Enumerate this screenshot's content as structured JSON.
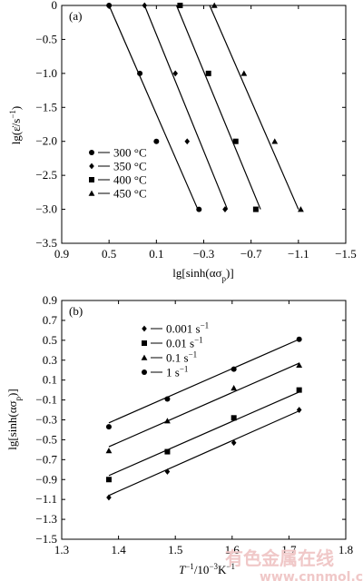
{
  "chart_data": [
    {
      "type": "scatter",
      "panel_label": "(a)",
      "title": "",
      "xlabel": "lg[sinh(ασ",
      "xlabel_sub": "p",
      "xlabel_close": ")]",
      "ylabel": "lg(ε̇/s",
      "ylabel_sup": "−1",
      "ylabel_close": ")",
      "xlim": [
        0.9,
        -1.5
      ],
      "ylim": [
        -3.5,
        0
      ],
      "x_ticks": [
        0.9,
        0.5,
        0.1,
        -0.3,
        -0.7,
        -1.1,
        -1.5
      ],
      "x_tick_labels": [
        "0.9",
        "0.5",
        "0.1",
        "−0.3",
        "−0.7",
        "−1.1",
        "−1.5"
      ],
      "y_ticks": [
        0,
        -0.5,
        -1.0,
        -1.5,
        -2.0,
        -2.5,
        -3.0,
        -3.5
      ],
      "y_tick_labels": [
        "0",
        "−0.5",
        "−1.0",
        "−1.5",
        "−2.0",
        "−2.5",
        "−3.0",
        "−3.5"
      ],
      "legend_position": "bottom-left",
      "series": [
        {
          "name": "300 °C",
          "marker": "circle",
          "x": [
            0.5,
            0.24,
            0.1,
            -0.26
          ],
          "y": [
            0,
            -1.0,
            -2.0,
            -3.0
          ],
          "fit": [
            [
              0.5,
              0
            ],
            [
              -0.25,
              -3.0
            ]
          ]
        },
        {
          "name": "350 °C",
          "marker": "diamond",
          "x": [
            0.2,
            -0.06,
            -0.16,
            -0.48
          ],
          "y": [
            0,
            -1.0,
            -2.0,
            -3.0
          ],
          "fit": [
            [
              0.2,
              0
            ],
            [
              -0.5,
              -3.0
            ]
          ]
        },
        {
          "name": "400 °C",
          "marker": "square",
          "x": [
            -0.1,
            -0.34,
            -0.57,
            -0.74
          ],
          "y": [
            0,
            -1.0,
            -2.0,
            -3.0
          ],
          "fit": [
            [
              -0.07,
              0
            ],
            [
              -0.78,
              -3.0
            ]
          ]
        },
        {
          "name": "450 °C",
          "marker": "triangle",
          "x": [
            -0.39,
            -0.64,
            -0.9,
            -1.12
          ],
          "y": [
            0,
            -1.0,
            -2.0,
            -3.0
          ],
          "fit": [
            [
              -0.35,
              0
            ],
            [
              -1.1,
              -3.0
            ]
          ]
        }
      ]
    },
    {
      "type": "scatter",
      "panel_label": "(b)",
      "title": "",
      "xlabel": "T",
      "xlabel_sup": "−1",
      "xlabel_rest": "/10",
      "xlabel_sup2": "−3",
      "xlabel_unit": "K",
      "xlabel_sup3": "−1",
      "ylabel": "lg[sinh(ασ",
      "ylabel_sub": "p",
      "ylabel_close": ")]",
      "xlim": [
        1.3,
        1.8
      ],
      "ylim": [
        -1.5,
        0.9
      ],
      "x_ticks": [
        1.3,
        1.4,
        1.5,
        1.6,
        1.7,
        1.8
      ],
      "x_tick_labels": [
        "1.3",
        "1.4",
        "1.5",
        "1.6",
        "1.7",
        "1.8"
      ],
      "y_ticks": [
        0.9,
        0.7,
        0.5,
        0.3,
        0.1,
        -0.1,
        -0.3,
        -0.5,
        -0.7,
        -0.9,
        -1.1,
        -1.3,
        -1.5
      ],
      "y_tick_labels": [
        "0.9",
        "0.7",
        "0.5",
        "0.3",
        "0.1",
        "−0.1",
        "−0.3",
        "−0.5",
        "−0.7",
        "−0.9",
        "−1.1",
        "−1.3",
        "−1.5"
      ],
      "legend_position": "top-left",
      "series": [
        {
          "name": "0.001 s",
          "name_sup": "−1",
          "marker": "diamond",
          "x": [
            1.383,
            1.486,
            1.603,
            1.718
          ],
          "y": [
            -1.08,
            -0.82,
            -0.53,
            -0.2
          ],
          "fit": [
            [
              1.383,
              -1.06
            ],
            [
              1.718,
              -0.21
            ]
          ]
        },
        {
          "name": "0.01 s",
          "name_sup": "−1",
          "marker": "square",
          "x": [
            1.383,
            1.486,
            1.603,
            1.718
          ],
          "y": [
            -0.9,
            -0.62,
            -0.28,
            0.0
          ],
          "fit": [
            [
              1.383,
              -0.86
            ],
            [
              1.718,
              -0.02
            ]
          ]
        },
        {
          "name": "0.1 s",
          "name_sup": "−1",
          "marker": "triangle",
          "x": [
            1.383,
            1.486,
            1.603,
            1.718
          ],
          "y": [
            -0.61,
            -0.31,
            0.02,
            0.25
          ],
          "fit": [
            [
              1.383,
              -0.57
            ],
            [
              1.718,
              0.27
            ]
          ]
        },
        {
          "name": "1 s",
          "name_sup": "−1",
          "marker": "circle",
          "x": [
            1.383,
            1.486,
            1.603,
            1.718
          ],
          "y": [
            -0.37,
            -0.09,
            0.21,
            0.51
          ],
          "fit": [
            [
              1.383,
              -0.33
            ],
            [
              1.718,
              0.51
            ]
          ]
        }
      ]
    }
  ],
  "watermark": {
    "line1": "有色金属在线",
    "line2": "www.cnnmol.com"
  }
}
